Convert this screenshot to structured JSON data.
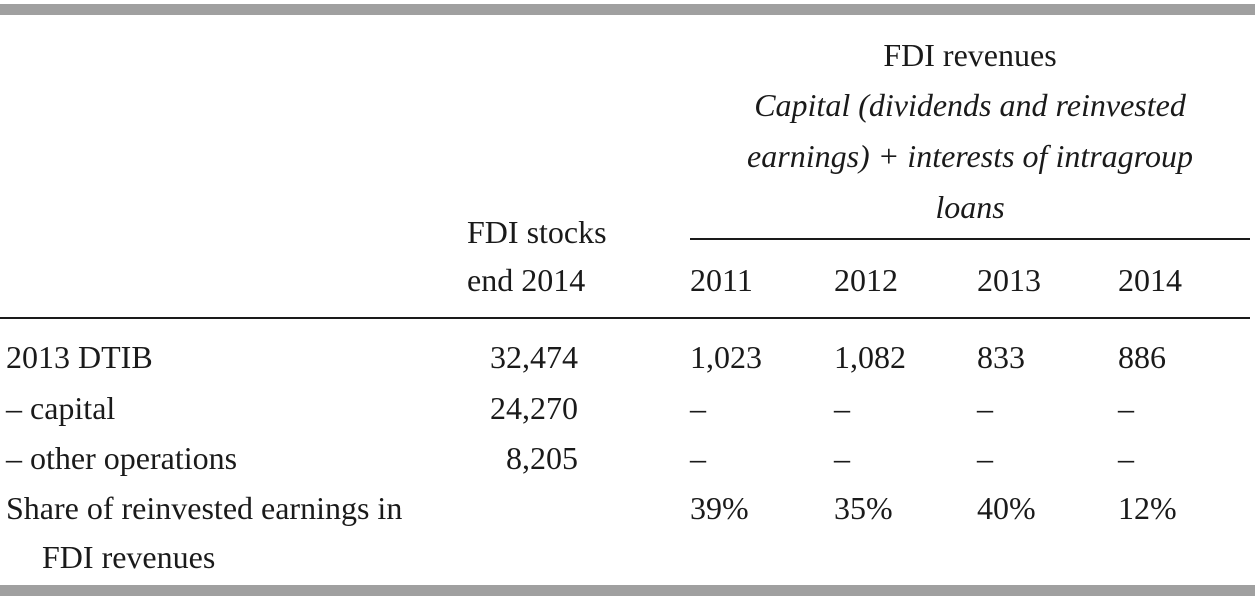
{
  "table": {
    "header": {
      "group_title": "FDI revenues",
      "group_subtitle_lines": [
        "Capital (dividends and reinvested",
        "earnings) + interests of intragroup",
        "loans"
      ],
      "stocks_label_lines": [
        "FDI stocks",
        "end 2014"
      ],
      "years": [
        "2011",
        "2012",
        "2013",
        "2014"
      ]
    },
    "rows": [
      {
        "label": "2013 DTIB",
        "stocks": "32,474",
        "values": [
          "1,023",
          "1,082",
          "833",
          "886"
        ]
      },
      {
        "label": "– capital",
        "stocks": "24,270",
        "values": [
          "–",
          "–",
          "–",
          "–"
        ]
      },
      {
        "label": "– other operations",
        "stocks": "8,205",
        "values": [
          "–",
          "–",
          "–",
          "–"
        ]
      },
      {
        "label": "Share of reinvested earnings in FDI revenues",
        "values": [
          "39%",
          "35%",
          "40%",
          "12%"
        ]
      }
    ]
  }
}
